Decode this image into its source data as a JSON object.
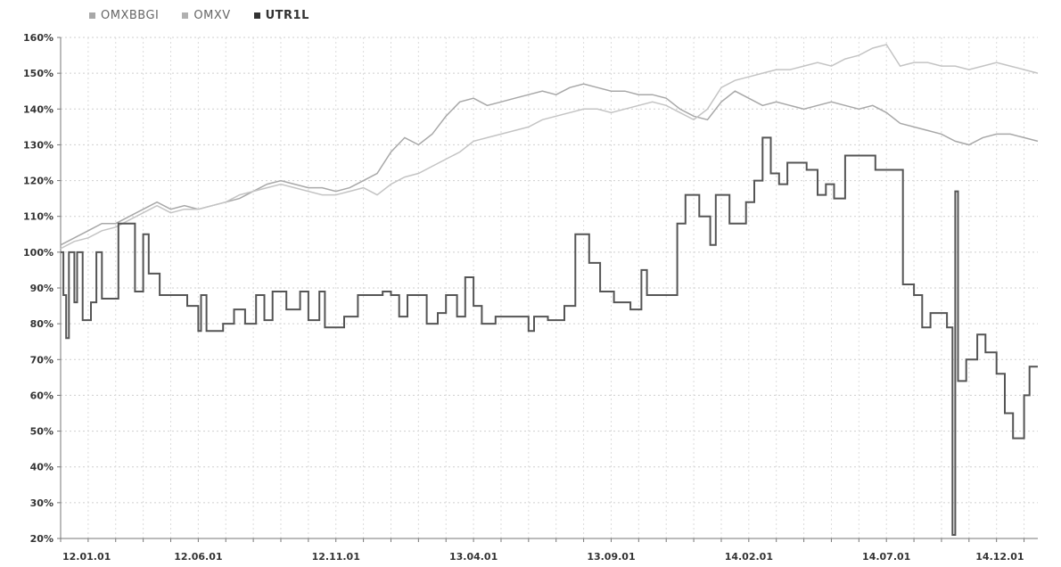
{
  "chart_data": {
    "type": "line",
    "title": "",
    "xlabel": "",
    "ylabel": "",
    "ylim": [
      20,
      160
    ],
    "y_ticks": [
      "20%",
      "30%",
      "40%",
      "50%",
      "60%",
      "70%",
      "80%",
      "90%",
      "100%",
      "110%",
      "120%",
      "130%",
      "140%",
      "150%",
      "160%"
    ],
    "y_tick_values": [
      20,
      30,
      40,
      50,
      60,
      70,
      80,
      90,
      100,
      110,
      120,
      130,
      140,
      150,
      160
    ],
    "x_ticks": [
      "12.01.01",
      "12.06.01",
      "12.11.01",
      "13.04.01",
      "13.09.01",
      "14.02.01",
      "14.07.01",
      "14.12.01"
    ],
    "x_tick_index": [
      0,
      5,
      10,
      15,
      20,
      25,
      30,
      35
    ],
    "x_range": [
      0,
      35.5
    ],
    "grid": "dotted",
    "legend": "top-left",
    "series": [
      {
        "name": "OMXBBGI",
        "color": "#a8a8a8",
        "points": [
          [
            0,
            102
          ],
          [
            0.5,
            104
          ],
          [
            1,
            106
          ],
          [
            1.5,
            108
          ],
          [
            2,
            108
          ],
          [
            2.5,
            110
          ],
          [
            3,
            112
          ],
          [
            3.5,
            114
          ],
          [
            4,
            112
          ],
          [
            4.5,
            113
          ],
          [
            5,
            112
          ],
          [
            5.5,
            113
          ],
          [
            6,
            114
          ],
          [
            6.5,
            115
          ],
          [
            7,
            117
          ],
          [
            7.5,
            119
          ],
          [
            8,
            120
          ],
          [
            8.5,
            119
          ],
          [
            9,
            118
          ],
          [
            9.5,
            118
          ],
          [
            10,
            117
          ],
          [
            10.5,
            118
          ],
          [
            11,
            120
          ],
          [
            11.5,
            122
          ],
          [
            12,
            128
          ],
          [
            12.5,
            132
          ],
          [
            13,
            130
          ],
          [
            13.5,
            133
          ],
          [
            14,
            138
          ],
          [
            14.5,
            142
          ],
          [
            15,
            143
          ],
          [
            15.5,
            141
          ],
          [
            16,
            142
          ],
          [
            16.5,
            143
          ],
          [
            17,
            144
          ],
          [
            17.5,
            145
          ],
          [
            18,
            144
          ],
          [
            18.5,
            146
          ],
          [
            19,
            147
          ],
          [
            19.5,
            146
          ],
          [
            20,
            145
          ],
          [
            20.5,
            145
          ],
          [
            21,
            144
          ],
          [
            21.5,
            144
          ],
          [
            22,
            143
          ],
          [
            22.5,
            140
          ],
          [
            23,
            138
          ],
          [
            23.5,
            137
          ],
          [
            24,
            142
          ],
          [
            24.5,
            145
          ],
          [
            25,
            143
          ],
          [
            25.5,
            141
          ],
          [
            26,
            142
          ],
          [
            26.5,
            141
          ],
          [
            27,
            140
          ],
          [
            27.5,
            141
          ],
          [
            28,
            142
          ],
          [
            28.5,
            141
          ],
          [
            29,
            140
          ],
          [
            29.5,
            141
          ],
          [
            30,
            139
          ],
          [
            30.5,
            136
          ],
          [
            31,
            135
          ],
          [
            31.5,
            134
          ],
          [
            32,
            133
          ],
          [
            32.5,
            131
          ],
          [
            33,
            130
          ],
          [
            33.5,
            132
          ],
          [
            34,
            133
          ],
          [
            34.5,
            133
          ],
          [
            35,
            132
          ],
          [
            35.5,
            131
          ]
        ]
      },
      {
        "name": "OMXV",
        "color": "#c4c4c4",
        "points": [
          [
            0,
            101
          ],
          [
            0.5,
            103
          ],
          [
            1,
            104
          ],
          [
            1.5,
            106
          ],
          [
            2,
            107
          ],
          [
            2.5,
            109
          ],
          [
            3,
            111
          ],
          [
            3.5,
            113
          ],
          [
            4,
            111
          ],
          [
            4.5,
            112
          ],
          [
            5,
            112
          ],
          [
            5.5,
            113
          ],
          [
            6,
            114
          ],
          [
            6.5,
            116
          ],
          [
            7,
            117
          ],
          [
            7.5,
            118
          ],
          [
            8,
            119
          ],
          [
            8.5,
            118
          ],
          [
            9,
            117
          ],
          [
            9.5,
            116
          ],
          [
            10,
            116
          ],
          [
            10.5,
            117
          ],
          [
            11,
            118
          ],
          [
            11.5,
            116
          ],
          [
            12,
            119
          ],
          [
            12.5,
            121
          ],
          [
            13,
            122
          ],
          [
            13.5,
            124
          ],
          [
            14,
            126
          ],
          [
            14.5,
            128
          ],
          [
            15,
            131
          ],
          [
            15.5,
            132
          ],
          [
            16,
            133
          ],
          [
            16.5,
            134
          ],
          [
            17,
            135
          ],
          [
            17.5,
            137
          ],
          [
            18,
            138
          ],
          [
            18.5,
            139
          ],
          [
            19,
            140
          ],
          [
            19.5,
            140
          ],
          [
            20,
            139
          ],
          [
            20.5,
            140
          ],
          [
            21,
            141
          ],
          [
            21.5,
            142
          ],
          [
            22,
            141
          ],
          [
            22.5,
            139
          ],
          [
            23,
            137
          ],
          [
            23.5,
            140
          ],
          [
            24,
            146
          ],
          [
            24.5,
            148
          ],
          [
            25,
            149
          ],
          [
            25.5,
            150
          ],
          [
            26,
            151
          ],
          [
            26.5,
            151
          ],
          [
            27,
            152
          ],
          [
            27.5,
            153
          ],
          [
            28,
            152
          ],
          [
            28.5,
            154
          ],
          [
            29,
            155
          ],
          [
            29.5,
            157
          ],
          [
            30,
            158
          ],
          [
            30.5,
            152
          ],
          [
            31,
            153
          ],
          [
            31.5,
            153
          ],
          [
            32,
            152
          ],
          [
            32.5,
            152
          ],
          [
            33,
            151
          ],
          [
            33.5,
            152
          ],
          [
            34,
            153
          ],
          [
            34.5,
            152
          ],
          [
            35,
            151
          ],
          [
            35.5,
            150
          ]
        ]
      },
      {
        "name": "UTR1L",
        "color": "#555555",
        "points": [
          [
            0,
            100
          ],
          [
            0.1,
            100
          ],
          [
            0.1,
            88
          ],
          [
            0.2,
            88
          ],
          [
            0.2,
            76
          ],
          [
            0.3,
            76
          ],
          [
            0.3,
            100
          ],
          [
            0.5,
            100
          ],
          [
            0.5,
            86
          ],
          [
            0.6,
            86
          ],
          [
            0.6,
            100
          ],
          [
            0.8,
            100
          ],
          [
            0.8,
            81
          ],
          [
            1.1,
            81
          ],
          [
            1.1,
            86
          ],
          [
            1.3,
            86
          ],
          [
            1.3,
            100
          ],
          [
            1.5,
            100
          ],
          [
            1.5,
            87
          ],
          [
            2.1,
            87
          ],
          [
            2.1,
            108
          ],
          [
            2.7,
            108
          ],
          [
            2.7,
            89
          ],
          [
            3,
            89
          ],
          [
            3,
            105
          ],
          [
            3.2,
            105
          ],
          [
            3.2,
            94
          ],
          [
            3.6,
            94
          ],
          [
            3.6,
            88
          ],
          [
            4.6,
            88
          ],
          [
            4.6,
            85
          ],
          [
            5,
            85
          ],
          [
            5,
            78
          ],
          [
            5.1,
            78
          ],
          [
            5.1,
            88
          ],
          [
            5.3,
            88
          ],
          [
            5.3,
            78
          ],
          [
            5.9,
            78
          ],
          [
            5.9,
            80
          ],
          [
            6.3,
            80
          ],
          [
            6.3,
            84
          ],
          [
            6.7,
            84
          ],
          [
            6.7,
            80
          ],
          [
            7.1,
            80
          ],
          [
            7.1,
            88
          ],
          [
            7.4,
            88
          ],
          [
            7.4,
            81
          ],
          [
            7.7,
            81
          ],
          [
            7.7,
            89
          ],
          [
            8.2,
            89
          ],
          [
            8.2,
            84
          ],
          [
            8.7,
            84
          ],
          [
            8.7,
            89
          ],
          [
            9,
            89
          ],
          [
            9,
            81
          ],
          [
            9.4,
            81
          ],
          [
            9.4,
            89
          ],
          [
            9.6,
            89
          ],
          [
            9.6,
            79
          ],
          [
            10.3,
            79
          ],
          [
            10.3,
            82
          ],
          [
            10.8,
            82
          ],
          [
            10.8,
            88
          ],
          [
            11.7,
            88
          ],
          [
            11.7,
            89
          ],
          [
            12,
            89
          ],
          [
            12,
            88
          ],
          [
            12.3,
            88
          ],
          [
            12.3,
            82
          ],
          [
            12.6,
            82
          ],
          [
            12.6,
            88
          ],
          [
            13.3,
            88
          ],
          [
            13.3,
            80
          ],
          [
            13.7,
            80
          ],
          [
            13.7,
            83
          ],
          [
            14,
            83
          ],
          [
            14,
            88
          ],
          [
            14.4,
            88
          ],
          [
            14.4,
            82
          ],
          [
            14.7,
            82
          ],
          [
            14.7,
            93
          ],
          [
            15,
            93
          ],
          [
            15,
            85
          ],
          [
            15.3,
            85
          ],
          [
            15.3,
            80
          ],
          [
            15.8,
            80
          ],
          [
            15.8,
            82
          ],
          [
            17,
            82
          ],
          [
            17,
            78
          ],
          [
            17.2,
            78
          ],
          [
            17.2,
            82
          ],
          [
            17.7,
            82
          ],
          [
            17.7,
            81
          ],
          [
            18.3,
            81
          ],
          [
            18.3,
            85
          ],
          [
            18.7,
            85
          ],
          [
            18.7,
            105
          ],
          [
            19.2,
            105
          ],
          [
            19.2,
            97
          ],
          [
            19.6,
            97
          ],
          [
            19.6,
            89
          ],
          [
            20.1,
            89
          ],
          [
            20.1,
            86
          ],
          [
            20.7,
            86
          ],
          [
            20.7,
            84
          ],
          [
            21.1,
            84
          ],
          [
            21.1,
            95
          ],
          [
            21.3,
            95
          ],
          [
            21.3,
            88
          ],
          [
            22.4,
            88
          ],
          [
            22.4,
            108
          ],
          [
            22.7,
            108
          ],
          [
            22.7,
            116
          ],
          [
            23.2,
            116
          ],
          [
            23.2,
            110
          ],
          [
            23.6,
            110
          ],
          [
            23.6,
            102
          ],
          [
            23.8,
            102
          ],
          [
            23.8,
            116
          ],
          [
            24.3,
            116
          ],
          [
            24.3,
            108
          ],
          [
            24.9,
            108
          ],
          [
            24.9,
            114
          ],
          [
            25.2,
            114
          ],
          [
            25.2,
            120
          ],
          [
            25.5,
            120
          ],
          [
            25.5,
            132
          ],
          [
            25.8,
            132
          ],
          [
            25.8,
            122
          ],
          [
            26.1,
            122
          ],
          [
            26.1,
            119
          ],
          [
            26.4,
            119
          ],
          [
            26.4,
            125
          ],
          [
            27.1,
            125
          ],
          [
            27.1,
            123
          ],
          [
            27.5,
            123
          ],
          [
            27.5,
            116
          ],
          [
            27.8,
            116
          ],
          [
            27.8,
            119
          ],
          [
            28.1,
            119
          ],
          [
            28.1,
            115
          ],
          [
            28.5,
            115
          ],
          [
            28.5,
            127
          ],
          [
            29.6,
            127
          ],
          [
            29.6,
            123
          ],
          [
            30.6,
            123
          ],
          [
            30.6,
            91
          ],
          [
            31,
            91
          ],
          [
            31,
            88
          ],
          [
            31.3,
            88
          ],
          [
            31.3,
            79
          ],
          [
            31.6,
            79
          ],
          [
            31.6,
            83
          ],
          [
            32.2,
            83
          ],
          [
            32.2,
            79
          ],
          [
            32.4,
            79
          ],
          [
            32.4,
            21
          ],
          [
            32.5,
            21
          ],
          [
            32.5,
            117
          ],
          [
            32.6,
            117
          ],
          [
            32.6,
            64
          ],
          [
            32.9,
            64
          ],
          [
            32.9,
            70
          ],
          [
            33.3,
            70
          ],
          [
            33.3,
            77
          ],
          [
            33.6,
            77
          ],
          [
            33.6,
            72
          ],
          [
            34,
            72
          ],
          [
            34,
            66
          ],
          [
            34.3,
            66
          ],
          [
            34.3,
            55
          ],
          [
            34.6,
            55
          ],
          [
            34.6,
            48
          ],
          [
            35,
            48
          ],
          [
            35,
            60
          ],
          [
            35.2,
            60
          ],
          [
            35.2,
            68
          ],
          [
            35.5,
            68
          ]
        ]
      }
    ]
  }
}
